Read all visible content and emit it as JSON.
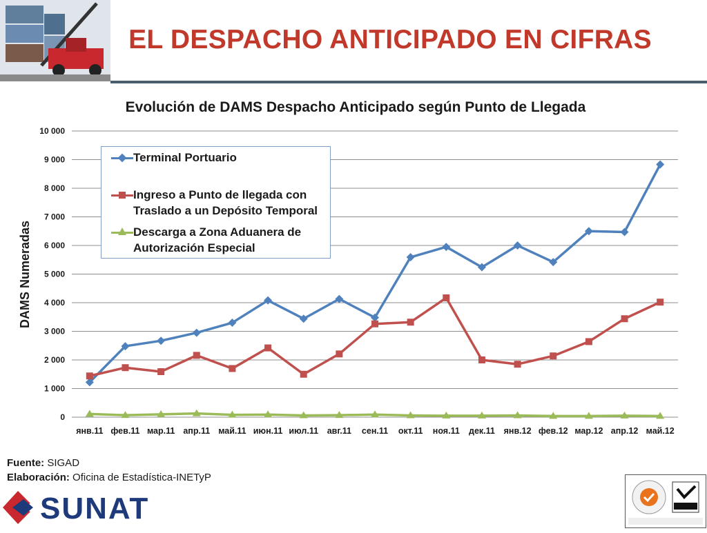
{
  "slide": {
    "title": "EL DESPACHO ANTICIPADO EN CIFRAS"
  },
  "footer": {
    "source_label": "Fuente:",
    "source_value": "SIGAD",
    "made_label": "Elaboración:",
    "made_value": "Oficina de Estadística-INETyP",
    "logo_text": "SUNAT"
  },
  "colors": {
    "title": "#c0392b",
    "series1": "#4f81bd",
    "series2": "#c0504d",
    "series3": "#9bbb59"
  },
  "chart_data": {
    "type": "line",
    "title": "Evolución de DAMS Despacho Anticipado según Punto de Llegada",
    "ylabel": "DAMS Numeradas",
    "xlabel": "",
    "ylim": [
      0,
      10000
    ],
    "yticks": [
      0,
      1000,
      2000,
      3000,
      4000,
      5000,
      6000,
      7000,
      8000,
      9000,
      10000
    ],
    "ytick_labels": [
      "0",
      "1 000",
      "2 000",
      "3 000",
      "4 000",
      "5 000",
      "6 000",
      "7 000",
      "8 000",
      "9 000",
      "10 000"
    ],
    "grid": true,
    "legend_position": "top-left",
    "categories": [
      "янв.11",
      "фев.11",
      "мар.11",
      "апр.11",
      "май.11",
      "июн.11",
      "июл.11",
      "авг.11",
      "сен.11",
      "окт.11",
      "ноя.11",
      "дек.11",
      "янв.12",
      "фев.12",
      "мар.12",
      "апр.12",
      "май.12"
    ],
    "series": [
      {
        "name": "Terminal Portuario",
        "marker": "diamond",
        "values": [
          1220,
          2480,
          2670,
          2950,
          3300,
          4080,
          3440,
          4130,
          3480,
          5590,
          5950,
          5240,
          6000,
          5420,
          6500,
          6470,
          8830
        ]
      },
      {
        "name": "Ingreso a Punto de llegada con Traslado a un Depósito Temporal",
        "marker": "square",
        "values": [
          1440,
          1730,
          1590,
          2160,
          1700,
          2420,
          1500,
          2210,
          3260,
          3320,
          4170,
          2000,
          1850,
          2140,
          2640,
          3440,
          4020
        ]
      },
      {
        "name": "Descarga a Zona Aduanera de Autorización Especial",
        "marker": "triangle",
        "values": [
          110,
          70,
          100,
          130,
          80,
          90,
          60,
          70,
          90,
          60,
          50,
          50,
          60,
          40,
          40,
          50,
          40
        ]
      }
    ]
  }
}
